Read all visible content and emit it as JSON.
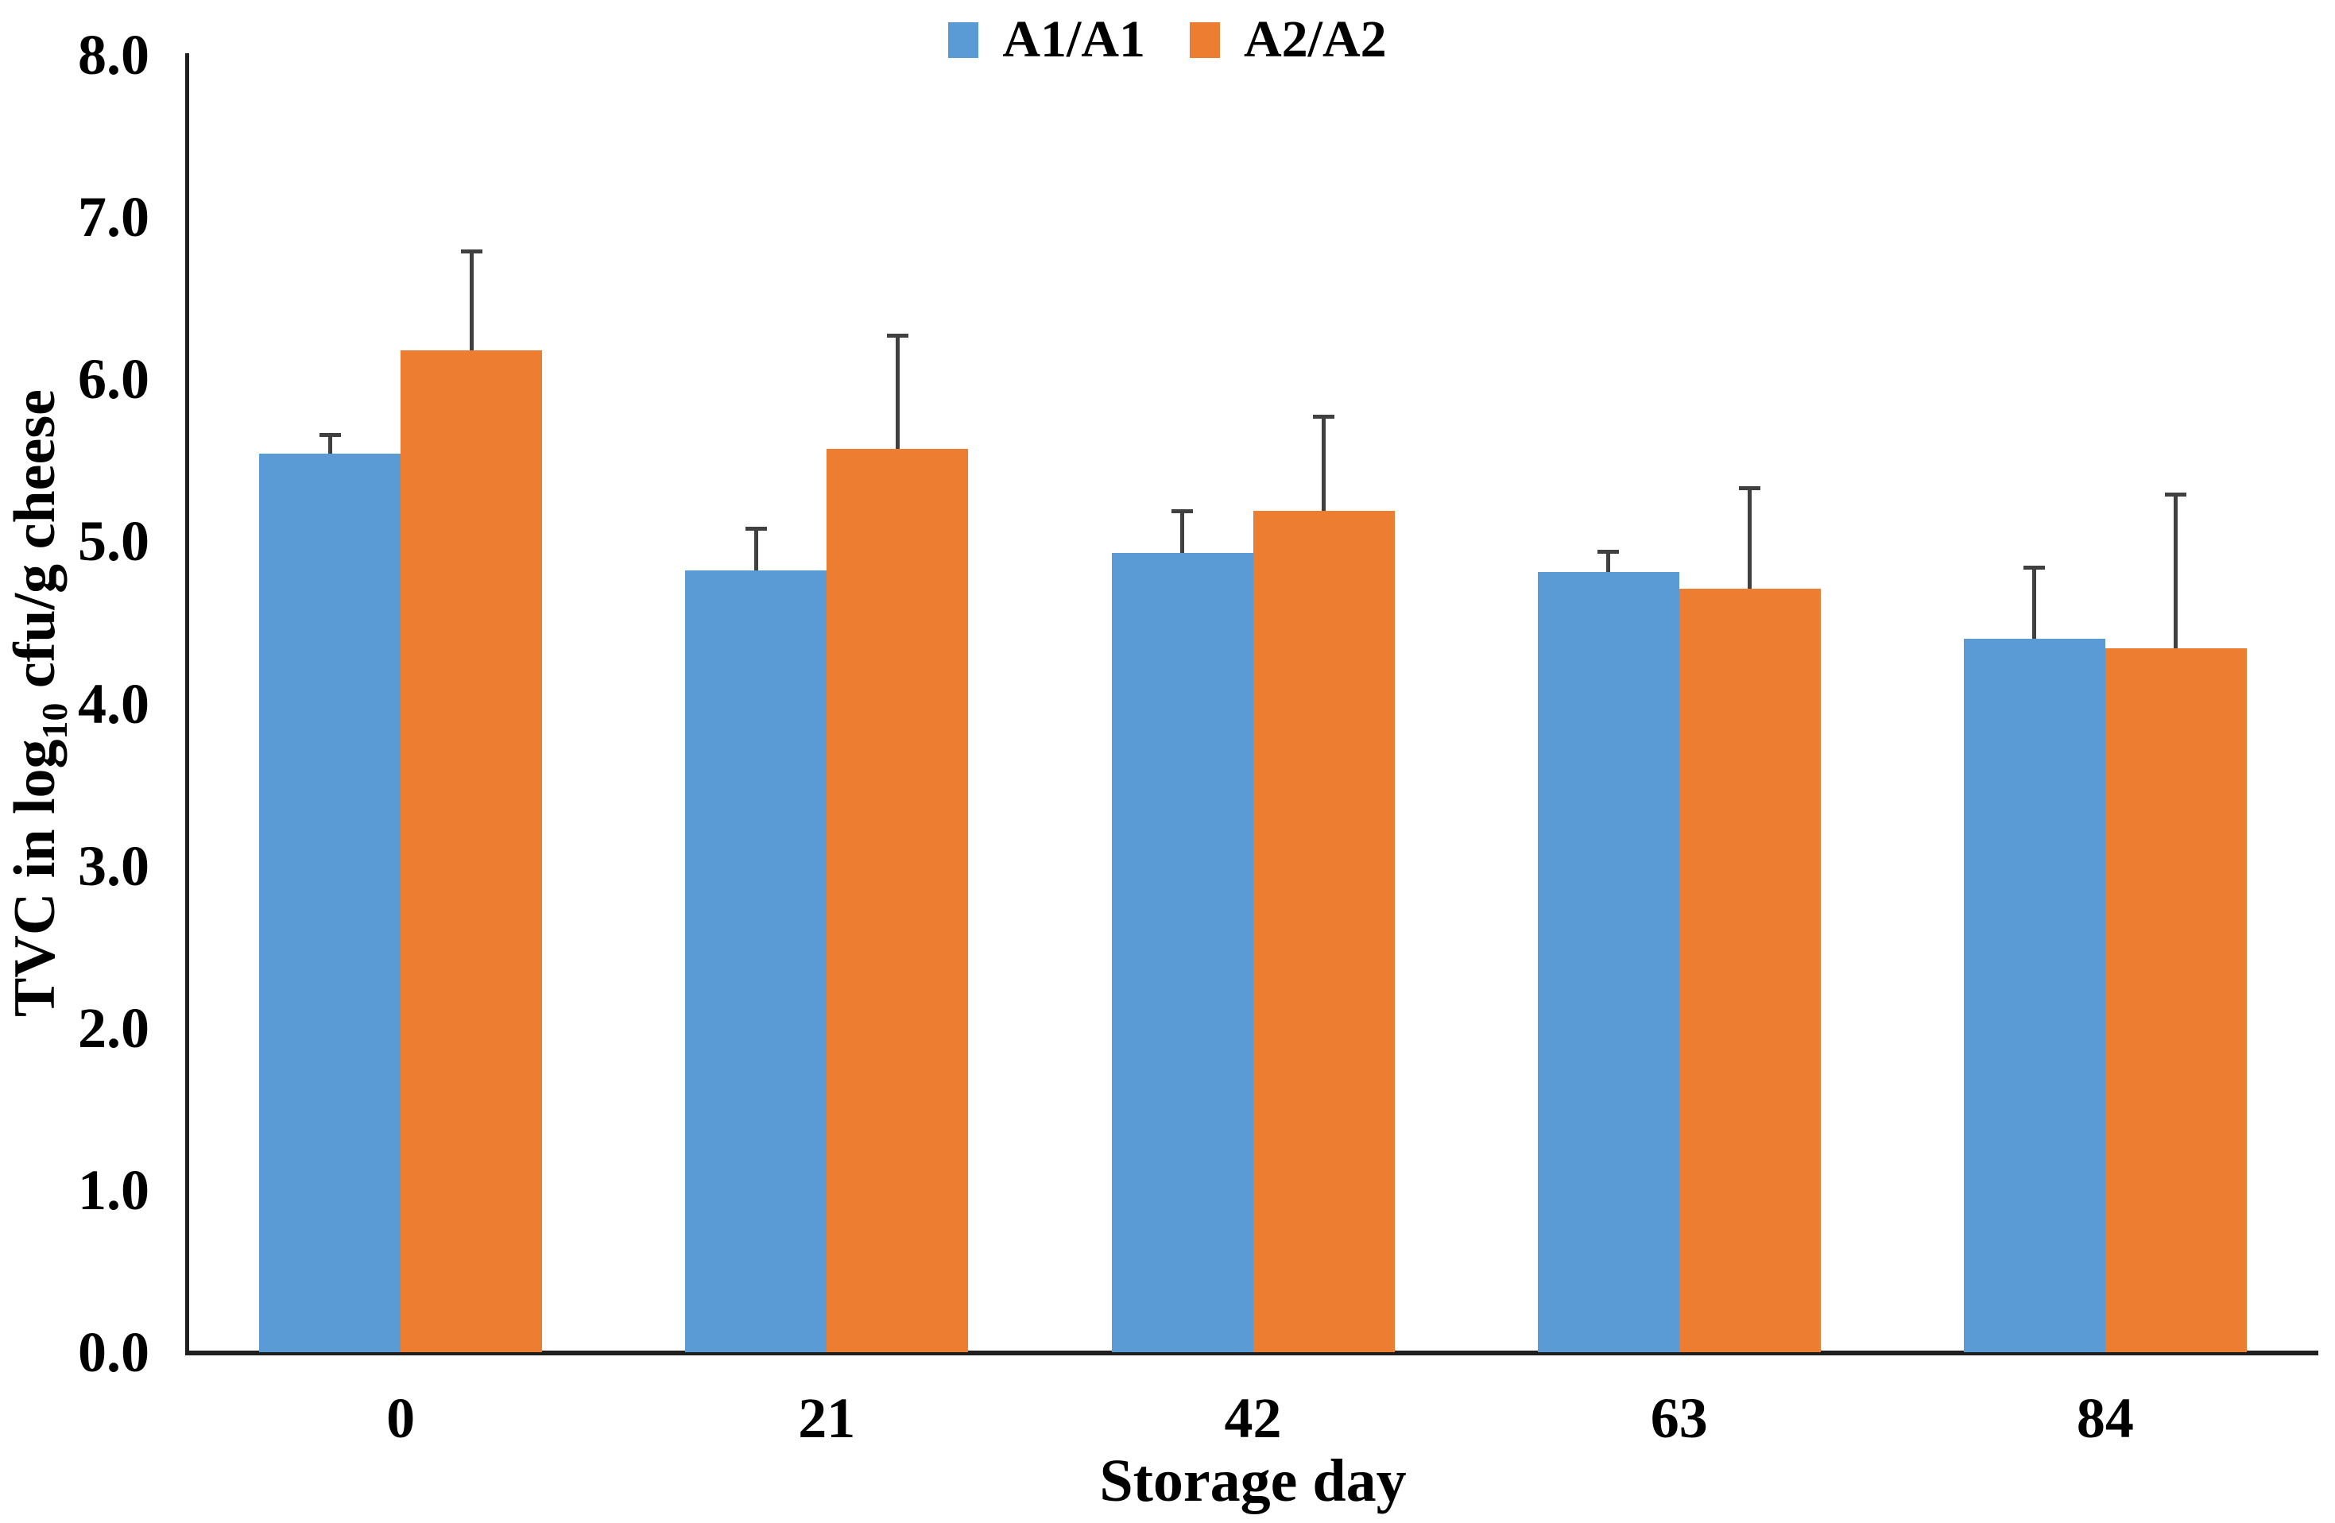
{
  "legend": {
    "items": [
      {
        "label": "A1/A1",
        "color": "#5B9BD5"
      },
      {
        "label": "A2/A2",
        "color": "#ED7D31"
      }
    ]
  },
  "axes": {
    "y_title_prefix": "TVC in log",
    "y_title_sub": "10",
    "y_title_suffix": " cfu/g cheese",
    "x_title": "Storage day",
    "y_tick_labels": [
      "0.0",
      "1.0",
      "2.0",
      "3.0",
      "4.0",
      "5.0",
      "6.0",
      "7.0",
      "8.0"
    ],
    "x_tick_labels": [
      "0",
      "21",
      "42",
      "63",
      "84"
    ]
  },
  "chart_data": {
    "type": "bar",
    "title": "",
    "xlabel": "Storage day",
    "ylabel": "TVC in log10 cfu/g cheese",
    "categories": [
      "0",
      "21",
      "42",
      "63",
      "84"
    ],
    "series": [
      {
        "name": "A1/A1",
        "color": "#5B9BD5",
        "values": [
          5.54,
          4.82,
          4.93,
          4.81,
          4.4
        ],
        "errors_plus": [
          0.12,
          0.26,
          0.26,
          0.13,
          0.44
        ]
      },
      {
        "name": "A2/A2",
        "color": "#ED7D31",
        "values": [
          6.18,
          5.57,
          5.19,
          4.71,
          4.34
        ],
        "errors_plus": [
          0.61,
          0.7,
          0.58,
          0.62,
          0.95
        ]
      }
    ],
    "ylim": [
      0.0,
      8.0
    ],
    "ytick_step": 1.0,
    "ytick_format": "one-decimal",
    "grid": false,
    "legend_position": "top-center",
    "error_bar_color": "#404040",
    "error_bars": "plus-only"
  }
}
